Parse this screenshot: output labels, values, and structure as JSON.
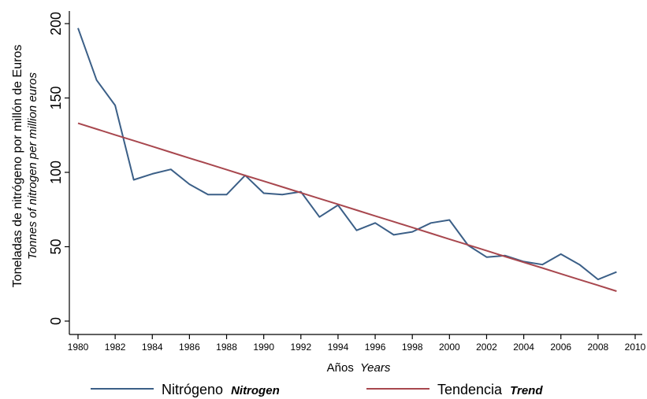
{
  "chart_data": {
    "type": "line",
    "x": [
      1980,
      1981,
      1982,
      1983,
      1984,
      1985,
      1986,
      1987,
      1988,
      1989,
      1990,
      1991,
      1992,
      1993,
      1994,
      1995,
      1996,
      1997,
      1998,
      1999,
      2000,
      2001,
      2002,
      2003,
      2004,
      2005,
      2006,
      2007,
      2008,
      2009
    ],
    "series": [
      {
        "name": "Nitrógeno",
        "name_en": "Nitrogen",
        "color": "#3b5f87",
        "values": [
          197,
          162,
          145,
          95,
          99,
          102,
          92,
          85,
          85,
          98,
          86,
          85,
          87,
          70,
          78,
          61,
          66,
          58,
          60,
          66,
          68,
          51,
          43,
          44,
          40,
          38,
          45,
          38,
          28,
          33
        ]
      },
      {
        "name": "Tendencia",
        "name_en": "Trend",
        "color": "#a8474e",
        "values": [
          133,
          129.1,
          125.2,
          121.3,
          117.4,
          113.5,
          109.6,
          105.7,
          101.8,
          97.9,
          94.1,
          90.2,
          86.3,
          82.4,
          78.5,
          74.6,
          70.7,
          66.8,
          62.9,
          59.0,
          55.1,
          51.2,
          47.3,
          43.4,
          39.5,
          35.7,
          31.8,
          27.9,
          24.0,
          20.1
        ]
      }
    ],
    "xlim": [
      1980,
      2010
    ],
    "ylim": [
      0,
      200
    ],
    "x_ticks": [
      "1980",
      "1982",
      "1984",
      "1986",
      "1988",
      "1990",
      "1992",
      "1994",
      "1996",
      "1998",
      "2000",
      "2002",
      "2004",
      "2006",
      "2008",
      "2010"
    ],
    "y_ticks": [
      "0",
      "50",
      "100",
      "150",
      "200"
    ],
    "xlabel": "Años",
    "xlabel_en": "Years",
    "ylabel": "Toneladas de nitrógeno por millón de Euros",
    "ylabel_en": "Tonnes of nitrogen per million euros",
    "grid": false,
    "legend_position": "bottom"
  }
}
